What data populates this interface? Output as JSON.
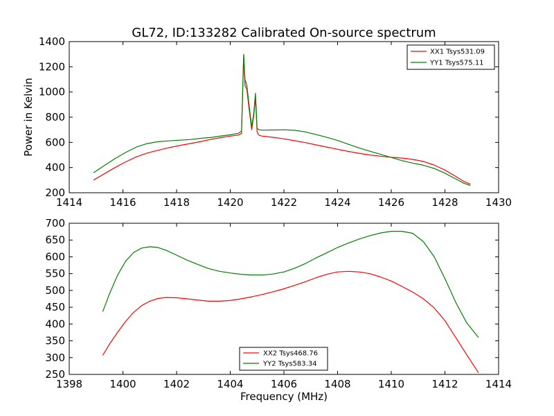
{
  "figure": {
    "title": "GL72, ID:133282 Calibrated On-source spectrum",
    "shared_xlabel": "Frequency (MHz)"
  },
  "chart_data": [
    {
      "type": "line",
      "title": "GL72, ID:133282 Calibrated On-source spectrum",
      "xlabel": "",
      "ylabel": "Power in Kelvin",
      "xlim": [
        1414,
        1430
      ],
      "ylim": [
        200,
        1400
      ],
      "xticks": [
        "1414",
        "1416",
        "1418",
        "1420",
        "1422",
        "1424",
        "1426",
        "1428",
        "1430"
      ],
      "yticks": [
        "200",
        "400",
        "600",
        "800",
        "1000",
        "1200",
        "1400"
      ],
      "grid": false,
      "legend_position": "top-right",
      "series": [
        {
          "name": "XX1 Tsys531.09",
          "color": "#ff0000",
          "x": [
            1414.9,
            1415.3,
            1415.7,
            1416.1,
            1416.5,
            1416.9,
            1417.3,
            1417.7,
            1418.1,
            1418.5,
            1418.9,
            1419.3,
            1419.7,
            1420.0,
            1420.3,
            1420.42,
            1420.5,
            1420.55,
            1420.62,
            1420.7,
            1420.8,
            1420.88,
            1420.94,
            1421.0,
            1421.08,
            1421.2,
            1421.6,
            1422.0,
            1422.4,
            1422.8,
            1423.2,
            1423.6,
            1424.0,
            1424.4,
            1424.8,
            1425.2,
            1425.6,
            1426.0,
            1426.4,
            1426.8,
            1427.2,
            1427.6,
            1428.0,
            1428.4,
            1428.7,
            1428.95
          ],
          "y": [
            300,
            350,
            400,
            445,
            485,
            515,
            537,
            557,
            575,
            590,
            607,
            625,
            640,
            650,
            658,
            670,
            1290,
            1050,
            1020,
            870,
            700,
            820,
            955,
            680,
            655,
            650,
            640,
            628,
            613,
            598,
            580,
            563,
            545,
            528,
            513,
            500,
            490,
            482,
            475,
            465,
            448,
            420,
            380,
            330,
            290,
            268
          ]
        },
        {
          "name": "YY1 Tsys575.11",
          "color": "#008000",
          "x": [
            1414.9,
            1415.3,
            1415.7,
            1416.1,
            1416.5,
            1416.9,
            1417.3,
            1417.7,
            1418.1,
            1418.5,
            1418.9,
            1419.3,
            1419.7,
            1420.0,
            1420.3,
            1420.42,
            1420.5,
            1420.55,
            1420.62,
            1420.7,
            1420.8,
            1420.88,
            1420.94,
            1421.0,
            1421.08,
            1421.2,
            1421.6,
            1422.0,
            1422.4,
            1422.8,
            1423.2,
            1423.6,
            1424.0,
            1424.4,
            1424.8,
            1425.2,
            1425.6,
            1426.0,
            1426.4,
            1426.8,
            1427.2,
            1427.6,
            1428.0,
            1428.4,
            1428.7,
            1428.95
          ],
          "y": [
            358,
            415,
            470,
            520,
            563,
            590,
            605,
            612,
            617,
            622,
            632,
            640,
            652,
            660,
            672,
            690,
            1300,
            1100,
            1050,
            900,
            720,
            840,
            990,
            710,
            700,
            697,
            698,
            700,
            696,
            683,
            662,
            640,
            615,
            585,
            556,
            530,
            505,
            480,
            455,
            435,
            418,
            393,
            355,
            310,
            276,
            258
          ]
        }
      ]
    },
    {
      "type": "line",
      "title": "",
      "xlabel": "Frequency (MHz)",
      "ylabel": "",
      "xlim": [
        1398,
        1414
      ],
      "ylim": [
        250,
        700
      ],
      "xticks": [
        "1398",
        "1400",
        "1402",
        "1404",
        "1406",
        "1408",
        "1410",
        "1412",
        "1414"
      ],
      "yticks": [
        "250",
        "300",
        "350",
        "400",
        "450",
        "500",
        "550",
        "600",
        "650",
        "700"
      ],
      "grid": false,
      "legend_position": "bottom-center",
      "series": [
        {
          "name": "XX2 Tsys468.76",
          "color": "#ff0000",
          "x": [
            1399.25,
            1399.5,
            1399.8,
            1400.1,
            1400.4,
            1400.7,
            1401.0,
            1401.3,
            1401.6,
            1402.0,
            1402.4,
            1402.8,
            1403.2,
            1403.6,
            1404.0,
            1404.4,
            1404.8,
            1405.2,
            1405.6,
            1406.0,
            1406.4,
            1406.8,
            1407.2,
            1407.6,
            1408.0,
            1408.4,
            1408.8,
            1409.2,
            1409.6,
            1410.0,
            1410.4,
            1410.8,
            1411.2,
            1411.6,
            1412.0,
            1412.4,
            1412.8,
            1413.25
          ],
          "y": [
            307,
            340,
            375,
            408,
            435,
            455,
            468,
            476,
            479,
            478,
            475,
            471,
            468,
            468,
            470,
            475,
            481,
            488,
            496,
            505,
            515,
            526,
            538,
            548,
            555,
            557,
            555,
            550,
            540,
            528,
            512,
            495,
            475,
            448,
            410,
            360,
            310,
            255
          ]
        },
        {
          "name": "YY2 Tsys583.34",
          "color": "#008000",
          "x": [
            1399.25,
            1399.5,
            1399.8,
            1400.1,
            1400.4,
            1400.7,
            1401.0,
            1401.3,
            1401.6,
            1402.0,
            1402.4,
            1402.8,
            1403.2,
            1403.6,
            1404.0,
            1404.4,
            1404.8,
            1405.2,
            1405.6,
            1406.0,
            1406.4,
            1406.8,
            1407.2,
            1407.6,
            1408.0,
            1408.4,
            1408.8,
            1409.2,
            1409.6,
            1410.0,
            1410.4,
            1410.8,
            1411.2,
            1411.6,
            1412.0,
            1412.4,
            1412.8,
            1413.25
          ],
          "y": [
            437,
            490,
            545,
            587,
            613,
            626,
            630,
            628,
            620,
            605,
            590,
            577,
            565,
            557,
            552,
            548,
            546,
            546,
            549,
            555,
            566,
            580,
            597,
            612,
            628,
            641,
            653,
            663,
            671,
            676,
            676,
            670,
            645,
            600,
            535,
            465,
            405,
            360
          ]
        }
      ]
    }
  ]
}
